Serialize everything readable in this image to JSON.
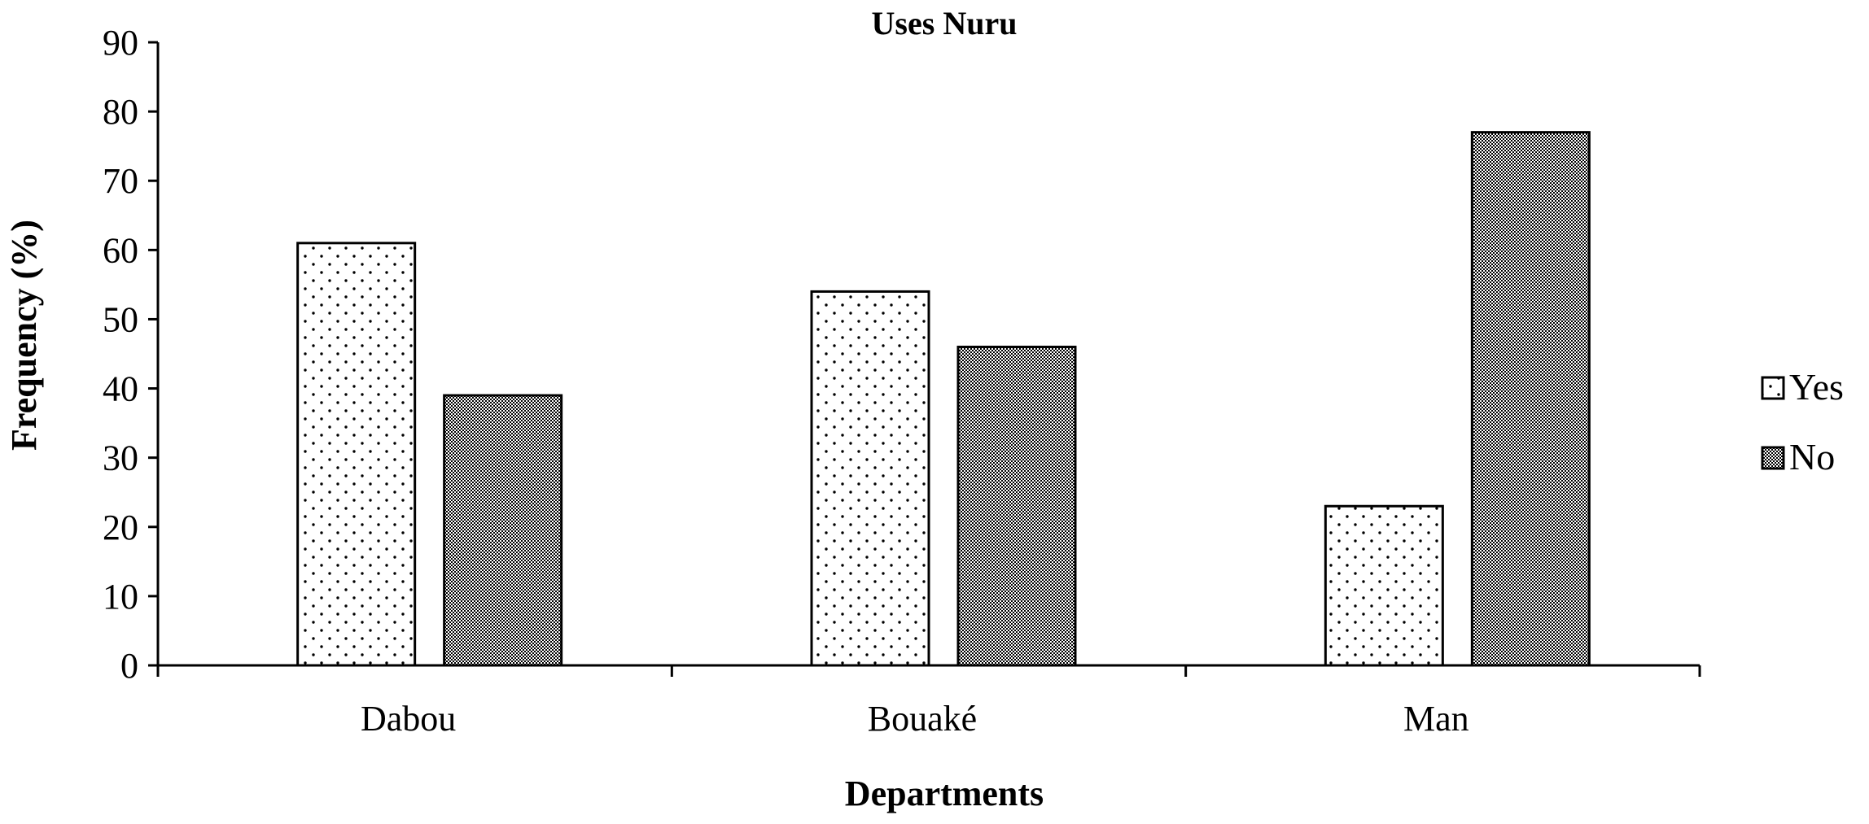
{
  "chart_data": {
    "type": "bar",
    "title": "Uses Nuru",
    "xlabel": "Departments",
    "ylabel": "Frequency (%)",
    "categories": [
      "Dabou",
      "Bouaké",
      "Man"
    ],
    "series": [
      {
        "name": "Yes",
        "values": [
          61,
          54,
          23
        ],
        "pattern": "dots"
      },
      {
        "name": "No",
        "values": [
          39,
          46,
          77
        ],
        "pattern": "checker"
      }
    ],
    "ylim": [
      0,
      90
    ],
    "yticks": [
      0,
      10,
      20,
      30,
      40,
      50,
      60,
      70,
      80,
      90
    ],
    "grid": false,
    "legend_position": "right",
    "colors": {
      "axis": "#000000",
      "bar_outline": "#000000",
      "background": "#ffffff"
    }
  }
}
